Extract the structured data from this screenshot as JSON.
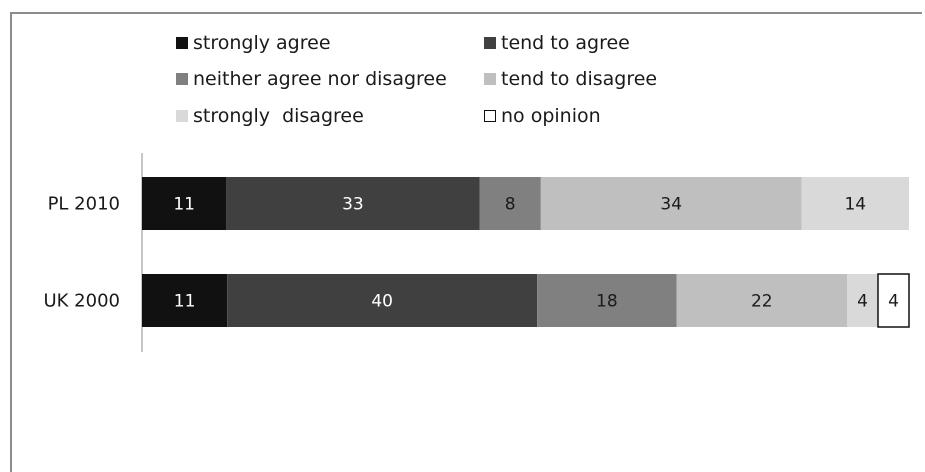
{
  "chart_data": {
    "type": "bar",
    "orientation": "horizontal",
    "stacked": true,
    "title": "",
    "xlabel": "",
    "ylabel": "",
    "categories": [
      "PL 2010",
      "UK 2000"
    ],
    "series": [
      {
        "name": "strongly agree",
        "color": "#111111",
        "label_color": "#ffffff",
        "values": [
          11,
          11
        ]
      },
      {
        "name": "tend to agree",
        "color": "#404040",
        "label_color": "#ffffff",
        "values": [
          33,
          40
        ]
      },
      {
        "name": "neither agree nor disagree",
        "color": "#808080",
        "label_color": "#1a1a1a",
        "values": [
          8,
          18
        ]
      },
      {
        "name": "tend to disagree",
        "color": "#bfbfbf",
        "label_color": "#1a1a1a",
        "values": [
          34,
          22
        ]
      },
      {
        "name": "strongly  disagree",
        "color": "#d9d9d9",
        "label_color": "#1a1a1a",
        "values": [
          14,
          4
        ]
      },
      {
        "name": "no opinion",
        "color": "#ffffff",
        "label_color": "#1a1a1a",
        "values": [
          0,
          4
        ]
      }
    ],
    "legend_position": "top",
    "grid": false
  }
}
